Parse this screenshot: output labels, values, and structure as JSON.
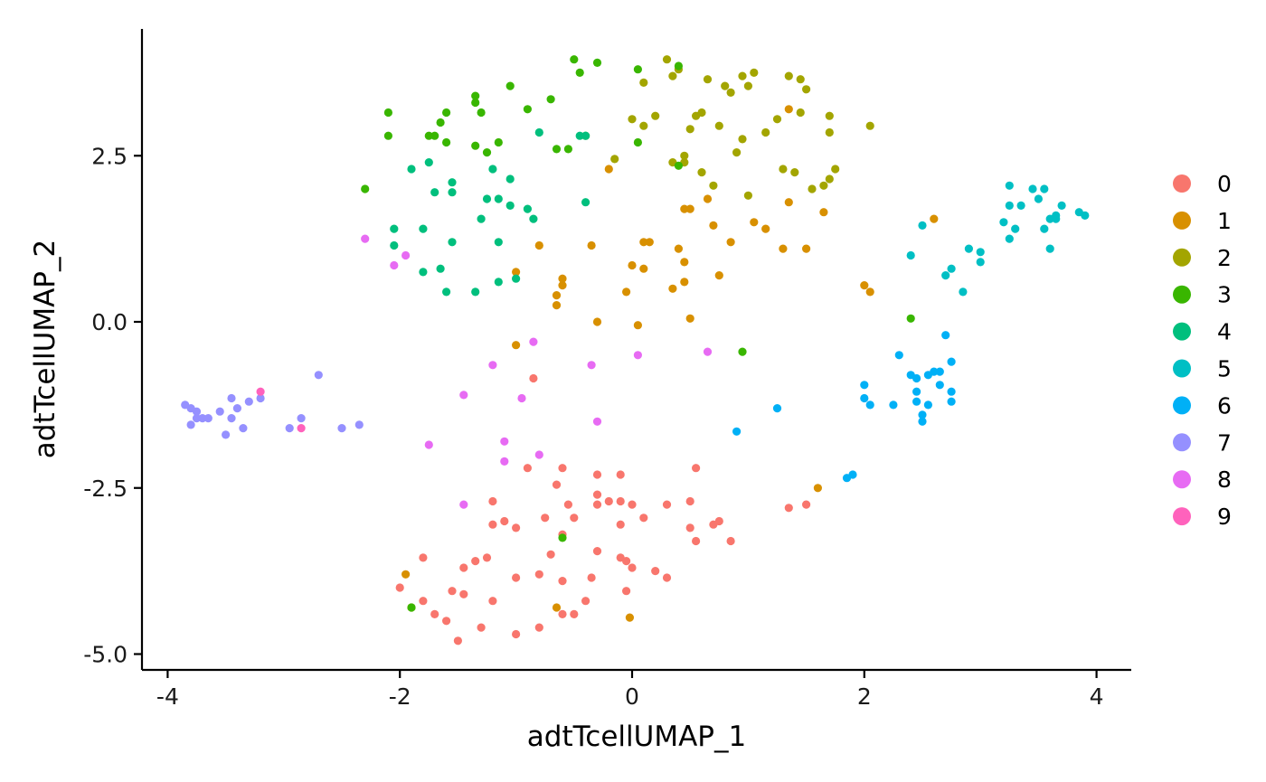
{
  "chart_data": {
    "type": "scatter",
    "title": "",
    "xlabel": "adtTcellUMAP_1",
    "ylabel": "adtTcellUMAP_2",
    "xlim": [
      -4.12,
      4.27
    ],
    "ylim": [
      -5.24,
      4.38
    ],
    "x_ticks": [
      -4,
      -2,
      0,
      2,
      4
    ],
    "x_tick_labels": [
      "-4",
      "-2",
      "0",
      "2",
      "4"
    ],
    "y_ticks": [
      -5.0,
      -2.5,
      0.0,
      2.5
    ],
    "y_tick_labels": [
      "-5.0",
      "-2.5",
      "0.0",
      "2.5"
    ],
    "grid": false,
    "legend_position": "right",
    "series": [
      {
        "name": "0",
        "color": "#F8766D",
        "points": [
          [
            -2.0,
            -4.0
          ],
          [
            -1.8,
            -4.2
          ],
          [
            -1.7,
            -4.4
          ],
          [
            -1.6,
            -4.5
          ],
          [
            -1.5,
            -4.8
          ],
          [
            -1.3,
            -4.6
          ],
          [
            -1.2,
            -4.2
          ],
          [
            -1.0,
            -4.7
          ],
          [
            -0.8,
            -4.6
          ],
          [
            -0.6,
            -4.4
          ],
          [
            -0.4,
            -4.2
          ],
          [
            -0.5,
            -4.4
          ],
          [
            -1.45,
            -4.1
          ],
          [
            -1.55,
            -4.05
          ],
          [
            -1.0,
            -3.85
          ],
          [
            -0.8,
            -3.8
          ],
          [
            -0.6,
            -3.9
          ],
          [
            -0.35,
            -3.85
          ],
          [
            -0.05,
            -3.6
          ],
          [
            0.0,
            -3.7
          ],
          [
            0.2,
            -3.75
          ],
          [
            0.3,
            -3.85
          ],
          [
            -0.05,
            -4.05
          ],
          [
            -1.8,
            -3.55
          ],
          [
            -1.45,
            -3.7
          ],
          [
            -1.35,
            -3.6
          ],
          [
            -1.25,
            -3.55
          ],
          [
            -0.7,
            -3.5
          ],
          [
            -0.3,
            -3.45
          ],
          [
            -0.1,
            -3.55
          ],
          [
            -1.1,
            -3.0
          ],
          [
            -1.0,
            -3.1
          ],
          [
            -0.6,
            -3.2
          ],
          [
            -0.5,
            -2.95
          ],
          [
            -0.3,
            -2.75
          ],
          [
            -0.2,
            -2.7
          ],
          [
            -0.1,
            -2.7
          ],
          [
            -0.1,
            -3.05
          ],
          [
            0.0,
            -2.75
          ],
          [
            0.1,
            -2.95
          ],
          [
            0.3,
            -2.75
          ],
          [
            0.5,
            -2.7
          ],
          [
            0.5,
            -3.1
          ],
          [
            0.55,
            -3.3
          ],
          [
            0.7,
            -3.05
          ],
          [
            0.75,
            -3.0
          ],
          [
            0.85,
            -3.3
          ],
          [
            -1.2,
            -2.7
          ],
          [
            -0.75,
            -2.95
          ],
          [
            -0.55,
            -2.75
          ],
          [
            -0.9,
            -2.2
          ],
          [
            -0.65,
            -2.45
          ],
          [
            -0.6,
            -2.2
          ],
          [
            -0.3,
            -2.3
          ],
          [
            -0.1,
            -2.3
          ],
          [
            -0.3,
            -2.6
          ],
          [
            0.55,
            -2.2
          ],
          [
            1.35,
            -2.8
          ],
          [
            1.5,
            -2.75
          ],
          [
            -1.2,
            -3.05
          ],
          [
            -0.85,
            -0.85
          ]
        ]
      },
      {
        "name": "1",
        "color": "#D89000",
        "points": [
          [
            -1.95,
            -3.8
          ],
          [
            -1.9,
            -4.3
          ],
          [
            -0.65,
            -4.3
          ],
          [
            -0.02,
            -4.45
          ],
          [
            1.6,
            -2.5
          ],
          [
            -0.6,
            0.55
          ],
          [
            -0.65,
            0.4
          ],
          [
            -0.65,
            0.25
          ],
          [
            -0.6,
            0.65
          ],
          [
            -0.3,
            0.0
          ],
          [
            0.0,
            0.85
          ],
          [
            -0.05,
            0.45
          ],
          [
            0.05,
            -0.05
          ],
          [
            0.1,
            1.2
          ],
          [
            0.1,
            0.8
          ],
          [
            0.15,
            1.2
          ],
          [
            0.35,
            0.5
          ],
          [
            0.45,
            0.6
          ],
          [
            0.45,
            0.9
          ],
          [
            0.5,
            0.05
          ],
          [
            0.45,
            1.7
          ],
          [
            0.5,
            1.7
          ],
          [
            0.65,
            1.85
          ],
          [
            0.7,
            1.45
          ],
          [
            0.75,
            0.7
          ],
          [
            0.85,
            1.2
          ],
          [
            1.05,
            1.5
          ],
          [
            1.15,
            1.4
          ],
          [
            1.3,
            1.1
          ],
          [
            1.5,
            1.1
          ],
          [
            1.35,
            1.8
          ],
          [
            1.65,
            1.65
          ],
          [
            -0.2,
            2.3
          ],
          [
            -0.8,
            1.15
          ],
          [
            -0.35,
            1.15
          ],
          [
            -1.0,
            0.75
          ],
          [
            -1.0,
            -0.35
          ],
          [
            0.4,
            1.1
          ],
          [
            2.0,
            0.55
          ],
          [
            2.05,
            0.45
          ],
          [
            2.6,
            1.55
          ],
          [
            1.35,
            3.2
          ]
        ]
      },
      {
        "name": "2",
        "color": "#A3A500",
        "points": [
          [
            0.3,
            3.95
          ],
          [
            0.4,
            3.8
          ],
          [
            0.55,
            3.1
          ],
          [
            0.6,
            3.15
          ],
          [
            0.75,
            2.95
          ],
          [
            0.8,
            3.55
          ],
          [
            0.85,
            3.45
          ],
          [
            0.65,
            3.65
          ],
          [
            0.95,
            3.7
          ],
          [
            1.0,
            3.55
          ],
          [
            1.05,
            3.75
          ],
          [
            1.15,
            2.85
          ],
          [
            1.25,
            3.05
          ],
          [
            1.35,
            3.7
          ],
          [
            1.45,
            3.65
          ],
          [
            1.45,
            3.15
          ],
          [
            1.5,
            3.5
          ],
          [
            1.7,
            3.1
          ],
          [
            1.7,
            2.85
          ],
          [
            2.05,
            2.95
          ],
          [
            0.0,
            3.05
          ],
          [
            0.1,
            3.6
          ],
          [
            0.2,
            3.1
          ],
          [
            0.35,
            3.7
          ],
          [
            0.35,
            2.4
          ],
          [
            0.45,
            2.4
          ],
          [
            0.5,
            2.9
          ],
          [
            0.45,
            2.5
          ],
          [
            0.6,
            2.25
          ],
          [
            0.7,
            2.05
          ],
          [
            0.9,
            2.55
          ],
          [
            0.95,
            2.75
          ],
          [
            1.0,
            1.9
          ],
          [
            1.3,
            2.3
          ],
          [
            1.4,
            2.25
          ],
          [
            1.55,
            2.0
          ],
          [
            1.7,
            2.15
          ],
          [
            1.75,
            2.3
          ],
          [
            1.65,
            2.05
          ],
          [
            -0.15,
            2.45
          ],
          [
            0.1,
            2.95
          ]
        ]
      },
      {
        "name": "3",
        "color": "#39B600",
        "points": [
          [
            -0.5,
            3.95
          ],
          [
            -0.45,
            3.75
          ],
          [
            -0.3,
            3.9
          ],
          [
            0.05,
            3.8
          ],
          [
            0.4,
            3.85
          ],
          [
            -0.9,
            3.2
          ],
          [
            -0.7,
            3.35
          ],
          [
            -0.65,
            2.6
          ],
          [
            -0.55,
            2.6
          ],
          [
            -0.4,
            2.8
          ],
          [
            0.05,
            2.7
          ],
          [
            -1.25,
            2.55
          ],
          [
            -1.15,
            2.7
          ],
          [
            -1.35,
            2.65
          ],
          [
            -1.6,
            2.7
          ],
          [
            -1.7,
            2.8
          ],
          [
            -1.75,
            2.8
          ],
          [
            -1.65,
            3.0
          ],
          [
            -1.6,
            3.15
          ],
          [
            -1.35,
            3.4
          ],
          [
            -1.3,
            3.15
          ],
          [
            -1.05,
            3.55
          ],
          [
            -2.1,
            2.8
          ],
          [
            -2.1,
            3.15
          ],
          [
            -1.35,
            3.3
          ],
          [
            -2.3,
            2.0
          ],
          [
            0.4,
            2.35
          ],
          [
            2.4,
            0.05
          ],
          [
            0.95,
            -0.45
          ],
          [
            -0.6,
            -3.25
          ],
          [
            -1.9,
            -4.3
          ]
        ]
      },
      {
        "name": "4",
        "color": "#00BF7D",
        "points": [
          [
            -0.8,
            2.85
          ],
          [
            -0.45,
            2.8
          ],
          [
            -0.4,
            2.8
          ],
          [
            -1.9,
            2.3
          ],
          [
            -1.75,
            2.4
          ],
          [
            -1.55,
            2.1
          ],
          [
            -1.55,
            1.95
          ],
          [
            -1.7,
            1.95
          ],
          [
            -1.2,
            2.3
          ],
          [
            -1.05,
            2.15
          ],
          [
            -1.25,
            1.85
          ],
          [
            -1.15,
            1.85
          ],
          [
            -1.05,
            1.75
          ],
          [
            -0.9,
            1.7
          ],
          [
            -0.85,
            1.55
          ],
          [
            -1.3,
            1.55
          ],
          [
            -1.15,
            1.2
          ],
          [
            -0.4,
            1.8
          ],
          [
            -2.05,
            1.4
          ],
          [
            -1.8,
            1.4
          ],
          [
            -2.05,
            1.15
          ],
          [
            -1.55,
            1.2
          ],
          [
            -1.8,
            0.75
          ],
          [
            -1.65,
            0.8
          ],
          [
            -1.6,
            0.45
          ],
          [
            -1.35,
            0.45
          ],
          [
            -1.15,
            0.6
          ],
          [
            -1.0,
            0.65
          ]
        ]
      },
      {
        "name": "5",
        "color": "#00BFC4",
        "points": [
          [
            3.25,
            2.05
          ],
          [
            3.25,
            1.75
          ],
          [
            3.35,
            1.75
          ],
          [
            3.45,
            2.0
          ],
          [
            3.55,
            2.0
          ],
          [
            3.5,
            1.85
          ],
          [
            3.2,
            1.5
          ],
          [
            3.25,
            1.25
          ],
          [
            3.3,
            1.4
          ],
          [
            3.55,
            1.4
          ],
          [
            3.6,
            1.55
          ],
          [
            3.65,
            1.6
          ],
          [
            3.7,
            1.75
          ],
          [
            3.65,
            1.55
          ],
          [
            3.85,
            1.65
          ],
          [
            3.9,
            1.6
          ],
          [
            3.6,
            1.1
          ],
          [
            2.9,
            1.1
          ],
          [
            3.0,
            1.05
          ],
          [
            3.0,
            0.9
          ],
          [
            2.75,
            0.8
          ],
          [
            2.7,
            0.7
          ],
          [
            2.85,
            0.45
          ],
          [
            2.5,
            1.45
          ],
          [
            2.4,
            1.0
          ]
        ]
      },
      {
        "name": "6",
        "color": "#00B0F6",
        "points": [
          [
            2.7,
            -0.2
          ],
          [
            2.75,
            -0.6
          ],
          [
            2.6,
            -0.75
          ],
          [
            2.65,
            -0.75
          ],
          [
            2.55,
            -0.8
          ],
          [
            2.4,
            -0.8
          ],
          [
            2.45,
            -0.85
          ],
          [
            2.3,
            -0.5
          ],
          [
            2.0,
            -0.95
          ],
          [
            2.0,
            -1.15
          ],
          [
            2.05,
            -1.25
          ],
          [
            2.25,
            -1.25
          ],
          [
            2.45,
            -1.05
          ],
          [
            2.45,
            -1.2
          ],
          [
            2.5,
            -1.4
          ],
          [
            2.5,
            -1.5
          ],
          [
            2.55,
            -1.25
          ],
          [
            2.65,
            -0.95
          ],
          [
            2.75,
            -1.05
          ],
          [
            2.75,
            -1.2
          ],
          [
            1.25,
            -1.3
          ],
          [
            0.9,
            -1.65
          ],
          [
            1.85,
            -2.35
          ],
          [
            1.9,
            -2.3
          ]
        ]
      },
      {
        "name": "7",
        "color": "#9590FF",
        "points": [
          [
            -3.85,
            -1.25
          ],
          [
            -3.8,
            -1.3
          ],
          [
            -3.8,
            -1.55
          ],
          [
            -3.75,
            -1.35
          ],
          [
            -3.75,
            -1.45
          ],
          [
            -3.7,
            -1.45
          ],
          [
            -3.65,
            -1.45
          ],
          [
            -3.55,
            -1.35
          ],
          [
            -3.5,
            -1.7
          ],
          [
            -3.45,
            -1.45
          ],
          [
            -3.45,
            -1.15
          ],
          [
            -3.4,
            -1.3
          ],
          [
            -3.35,
            -1.6
          ],
          [
            -3.3,
            -1.2
          ],
          [
            -3.2,
            -1.15
          ],
          [
            -2.95,
            -1.6
          ],
          [
            -2.85,
            -1.45
          ],
          [
            -2.7,
            -0.8
          ],
          [
            -2.5,
            -1.6
          ],
          [
            -2.35,
            -1.55
          ]
        ]
      },
      {
        "name": "8",
        "color": "#E76BF3",
        "points": [
          [
            -2.3,
            1.25
          ],
          [
            -2.05,
            0.85
          ],
          [
            -1.95,
            1.0
          ],
          [
            -1.2,
            -0.65
          ],
          [
            -0.85,
            -0.3
          ],
          [
            -0.95,
            -1.15
          ],
          [
            -1.45,
            -1.1
          ],
          [
            -0.35,
            -0.65
          ],
          [
            -0.3,
            -1.5
          ],
          [
            0.05,
            -0.5
          ],
          [
            0.65,
            -0.45
          ],
          [
            -1.75,
            -1.85
          ],
          [
            -1.1,
            -1.8
          ],
          [
            -1.1,
            -2.1
          ],
          [
            -0.8,
            -2.0
          ],
          [
            -1.45,
            -2.75
          ]
        ]
      },
      {
        "name": "9",
        "color": "#FF62BC",
        "points": [
          [
            -3.2,
            -1.05
          ],
          [
            -2.85,
            -1.6
          ]
        ]
      }
    ],
    "legend": {
      "entries": [
        "0",
        "1",
        "2",
        "3",
        "4",
        "5",
        "6",
        "7",
        "8",
        "9"
      ]
    }
  }
}
